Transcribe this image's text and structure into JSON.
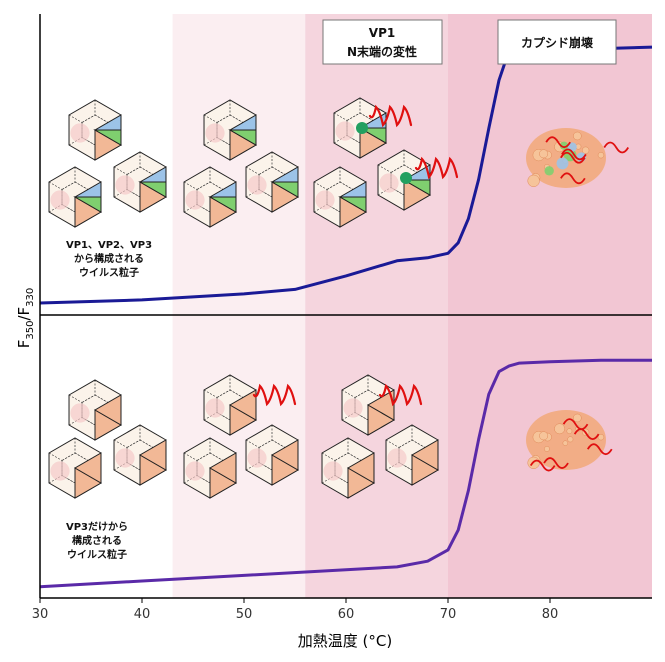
{
  "chart_data": {
    "type": "line",
    "xlabel": "加熱温度 (°C)",
    "ylabel_main": "F",
    "ylabel_sub1": "350",
    "ylabel_slash": "/F",
    "ylabel_sub2": "330",
    "xlim": [
      30,
      90
    ],
    "xticks": [
      30,
      40,
      50,
      60,
      70,
      80
    ],
    "stage_colors": [
      "#ffffff",
      "#fbeef1",
      "#f5d5de",
      "#f2c6d3"
    ],
    "stage_bounds": [
      30,
      43,
      56,
      70,
      90
    ],
    "panels": [
      {
        "id": "top",
        "color": "#1a1a96",
        "x": [
          30,
          40,
          50,
          55,
          60,
          65,
          68,
          70,
          71,
          72,
          73,
          74,
          75,
          75.6,
          76,
          77,
          80,
          85,
          90
        ],
        "y": [
          0.04,
          0.05,
          0.07,
          0.085,
          0.13,
          0.18,
          0.19,
          0.205,
          0.24,
          0.32,
          0.45,
          0.62,
          0.78,
          0.84,
          0.86,
          0.87,
          0.875,
          0.885,
          0.89
        ],
        "annotations": [
          "VP1",
          "N末端の変性",
          "カプシド崩壊"
        ],
        "caption": [
          "VP1、VP2、VP3",
          "から構成される",
          "ウイルス粒子"
        ]
      },
      {
        "id": "bottom",
        "color": "#5a2aa8",
        "x": [
          30,
          40,
          50,
          60,
          65,
          68,
          70,
          71,
          72,
          73,
          74,
          75,
          76,
          77,
          80,
          85,
          90
        ],
        "y": [
          0.04,
          0.06,
          0.08,
          0.1,
          0.11,
          0.13,
          0.17,
          0.24,
          0.38,
          0.56,
          0.72,
          0.8,
          0.82,
          0.83,
          0.835,
          0.84,
          0.84
        ],
        "caption": [
          "VP3だけから",
          "構成される",
          "ウイルス粒子"
        ]
      }
    ]
  },
  "colors": {
    "facet_orange": "#f2b896",
    "facet_blue": "#9cc3e8",
    "facet_green": "#7fcf6f",
    "protein_red": "#e01010",
    "protein_green": "#22a060",
    "debris_orange": "#f2a878"
  }
}
